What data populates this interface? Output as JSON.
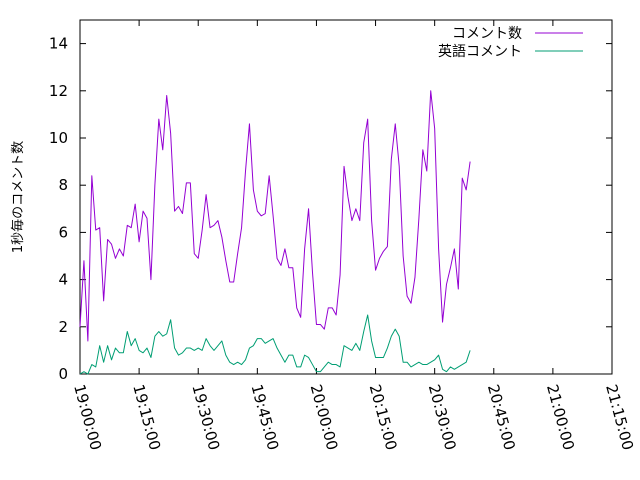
{
  "chart_data": {
    "type": "line",
    "ylabel": "1秒毎のコメント数",
    "xlabel": "",
    "title": "",
    "ylim": [
      0,
      15
    ],
    "xlim_minutes": [
      0,
      135
    ],
    "yticks": [
      0,
      2,
      4,
      6,
      8,
      10,
      12,
      14
    ],
    "xticks": [
      {
        "t": 0,
        "label": "19:00:00"
      },
      {
        "t": 15,
        "label": "19:15:00"
      },
      {
        "t": 30,
        "label": "19:30:00"
      },
      {
        "t": 45,
        "label": "19:45:00"
      },
      {
        "t": 60,
        "label": "20:00:00"
      },
      {
        "t": 75,
        "label": "20:15:00"
      },
      {
        "t": 90,
        "label": "20:30:00"
      },
      {
        "t": 105,
        "label": "20:45:00"
      },
      {
        "t": 120,
        "label": "21:00:00"
      },
      {
        "t": 135,
        "label": "21:15:00"
      }
    ],
    "grid": false,
    "legend_position": "top-right",
    "x_start": "19:00:00",
    "x_step_minutes": 1,
    "series": [
      {
        "name": "コメント数",
        "color": "#9400d3",
        "values": [
          2.0,
          4.8,
          1.4,
          8.4,
          6.1,
          6.2,
          3.1,
          5.7,
          5.5,
          4.9,
          5.3,
          5.0,
          6.3,
          6.2,
          7.2,
          5.6,
          6.9,
          6.6,
          4.0,
          8.0,
          10.8,
          9.5,
          11.8,
          10.2,
          6.9,
          7.1,
          6.8,
          8.1,
          8.1,
          5.1,
          4.9,
          6.1,
          7.6,
          6.2,
          6.3,
          6.5,
          5.8,
          4.8,
          3.9,
          3.9,
          5.1,
          6.2,
          8.6,
          10.6,
          7.8,
          6.9,
          6.7,
          6.8,
          8.4,
          6.7,
          4.9,
          4.6,
          5.3,
          4.5,
          4.5,
          2.8,
          2.4,
          5.3,
          7.0,
          4.3,
          2.1,
          2.1,
          1.9,
          2.8,
          2.8,
          2.5,
          4.2,
          8.8,
          7.5,
          6.5,
          7.0,
          6.5,
          9.8,
          10.8,
          6.5,
          4.4,
          4.9,
          5.2,
          5.4,
          9.1,
          10.6,
          8.8,
          5.0,
          3.3,
          3.0,
          4.1,
          6.6,
          9.5,
          8.6,
          12.0,
          10.4,
          5.3,
          2.2,
          3.8,
          4.5,
          5.3,
          3.6,
          8.3,
          7.8,
          9.0
        ]
      },
      {
        "name": "英語コメント",
        "color": "#009e73",
        "values": [
          0.0,
          0.1,
          0.0,
          0.4,
          0.3,
          1.2,
          0.5,
          1.2,
          0.6,
          1.1,
          0.9,
          0.9,
          1.8,
          1.2,
          1.5,
          1.0,
          0.9,
          1.1,
          0.7,
          1.6,
          1.8,
          1.6,
          1.7,
          2.3,
          1.1,
          0.8,
          0.9,
          1.1,
          1.1,
          1.0,
          1.1,
          1.0,
          1.5,
          1.2,
          1.0,
          1.2,
          1.4,
          0.8,
          0.5,
          0.4,
          0.5,
          0.4,
          0.6,
          1.1,
          1.2,
          1.5,
          1.5,
          1.3,
          1.4,
          1.5,
          1.1,
          0.8,
          0.5,
          0.8,
          0.8,
          0.3,
          0.3,
          0.8,
          0.7,
          0.4,
          0.1,
          0.1,
          0.3,
          0.5,
          0.4,
          0.4,
          0.3,
          1.2,
          1.1,
          1.0,
          1.3,
          1.0,
          1.8,
          2.5,
          1.4,
          0.7,
          0.7,
          0.7,
          1.1,
          1.6,
          1.9,
          1.6,
          0.5,
          0.5,
          0.3,
          0.4,
          0.5,
          0.4,
          0.4,
          0.5,
          0.6,
          0.8,
          0.2,
          0.1,
          0.3,
          0.2,
          0.3,
          0.4,
          0.5,
          1.0
        ]
      }
    ]
  }
}
